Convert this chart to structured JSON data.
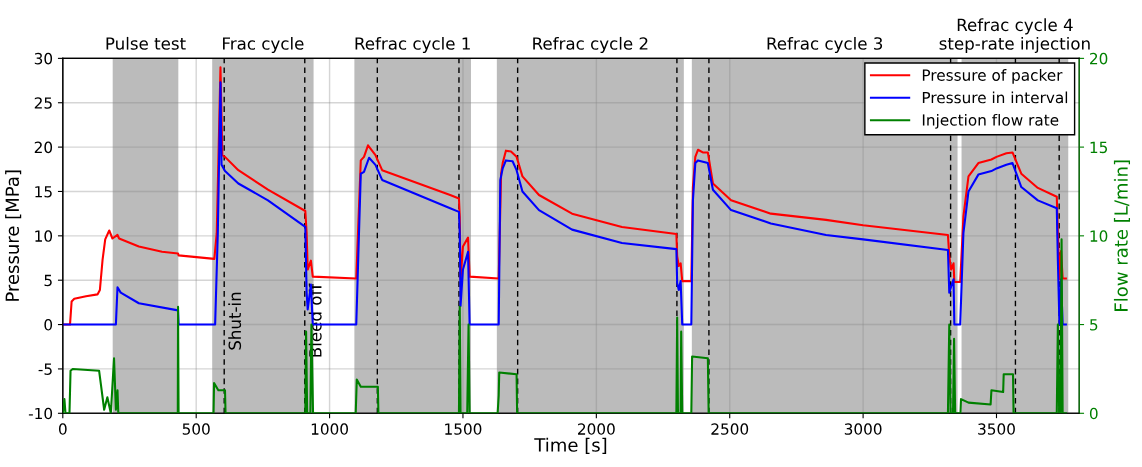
{
  "chart_data": {
    "type": "line",
    "xlabel": "Time [s]",
    "ylabel": "Pressure [MPa]",
    "y2label": "Flow rate [L/min]",
    "xlim": [
      0,
      3810
    ],
    "xticks": [
      0,
      500,
      1000,
      1500,
      2000,
      2500,
      3000,
      3500
    ],
    "ylim": [
      -10,
      30
    ],
    "yticks": [
      -10,
      -5,
      0,
      5,
      10,
      15,
      20,
      25,
      30
    ],
    "y2lim": [
      0,
      20
    ],
    "y2ticks": [
      0,
      5,
      10,
      15,
      20
    ],
    "grid": true,
    "legend": "top right",
    "line_style": "solid",
    "series": [
      {
        "name": "Pressure of packer",
        "color": "#ff0000",
        "x": [
          0,
          27,
          33,
          43,
          87,
          130,
          139,
          149,
          159,
          174,
          186,
          205,
          211,
          285,
          372,
          432,
          434,
          568,
          577,
          591,
          598,
          608,
          658,
          769,
          909,
          914,
          918,
          930,
          937,
          1100,
          1117,
          1129,
          1144,
          1172,
          1197,
          1452,
          1485,
          1488,
          1491,
          1500,
          1519,
          1525,
          1634,
          1643,
          1649,
          1661,
          1680,
          1701,
          1723,
          1785,
          1909,
          2096,
          2300,
          2303,
          2309,
          2316,
          2322,
          2356,
          2362,
          2371,
          2381,
          2399,
          2418,
          2437,
          2505,
          2654,
          2861,
          3000,
          3318,
          3323,
          3330,
          3339,
          3342,
          3364,
          3376,
          3395,
          3432,
          3481,
          3500,
          3537,
          3560,
          3593,
          3655,
          3726,
          3730,
          3736,
          3742,
          3748,
          3760
        ],
        "values": [
          0,
          0,
          2.6,
          2.9,
          3.2,
          3.4,
          3.9,
          7.3,
          9.6,
          10.6,
          9.7,
          10.1,
          9.7,
          8.8,
          8.2,
          8.0,
          7.8,
          7.4,
          10.3,
          29.0,
          19.1,
          18.9,
          17.4,
          15.2,
          12.8,
          10.3,
          6.2,
          7.2,
          5.4,
          5.2,
          18.5,
          18.9,
          20.2,
          19.1,
          17.4,
          14.6,
          14.2,
          12.2,
          5.1,
          8.8,
          9.8,
          5.4,
          5.2,
          17.0,
          18.2,
          19.6,
          19.5,
          18.9,
          16.7,
          14.6,
          12.5,
          11.0,
          10.2,
          7.7,
          6.6,
          6.9,
          4.9,
          4.9,
          15.5,
          18.9,
          19.7,
          19.4,
          19.4,
          15.9,
          14.0,
          12.5,
          11.8,
          11.2,
          10.1,
          7.7,
          6.2,
          6.9,
          4.8,
          4.8,
          12.2,
          16.7,
          18.2,
          18.6,
          18.9,
          19.3,
          19.4,
          17.0,
          15.4,
          14.4,
          10.3,
          5.1,
          8.3,
          5.2,
          5.2
        ]
      },
      {
        "name": "Pressure in interval",
        "color": "#0000ff",
        "x": [
          0,
          199,
          205,
          217,
          285,
          432,
          434,
          571,
          581,
          591,
          595,
          608,
          658,
          769,
          909,
          914,
          918,
          930,
          937,
          1100,
          1117,
          1129,
          1148,
          1172,
          1197,
          1452,
          1485,
          1488,
          1491,
          1500,
          1519,
          1525,
          1634,
          1640,
          1649,
          1661,
          1686,
          1701,
          1723,
          1785,
          1909,
          2096,
          2300,
          2303,
          2309,
          2316,
          2322,
          2356,
          2362,
          2371,
          2381,
          2418,
          2437,
          2505,
          2654,
          2861,
          3000,
          3318,
          3323,
          3330,
          3339,
          3342,
          3364,
          3376,
          3395,
          3432,
          3481,
          3500,
          3537,
          3560,
          3593,
          3655,
          3726,
          3730,
          3736,
          3742,
          3748,
          3760
        ],
        "values": [
          0,
          0,
          4.2,
          3.6,
          2.4,
          1.6,
          0,
          0,
          10.3,
          27.3,
          18.0,
          17.3,
          15.9,
          14.0,
          11.0,
          3.6,
          1.7,
          4.5,
          0,
          0,
          17.0,
          17.2,
          18.8,
          18.0,
          16.3,
          13.1,
          12.7,
          10.3,
          2.1,
          6.2,
          8.2,
          0,
          0,
          16.3,
          17.6,
          18.5,
          18.4,
          17.4,
          15.0,
          12.9,
          10.7,
          9.2,
          8.5,
          4.7,
          3.9,
          4.9,
          0,
          0,
          14.0,
          18.2,
          18.5,
          18.2,
          15.2,
          12.9,
          11.4,
          10.1,
          9.6,
          8.4,
          3.6,
          4.3,
          5.1,
          0,
          0,
          10.3,
          15.0,
          16.9,
          17.3,
          17.6,
          18.0,
          18.2,
          15.5,
          14.0,
          13.1,
          7.3,
          0,
          5.1,
          0,
          0
        ]
      },
      {
        "name": "Injection flow rate",
        "color": "#008000",
        "axis": "y2",
        "x": [
          0,
          6,
          10,
          25,
          29,
          37,
          136,
          143,
          155,
          167,
          180,
          192,
          199,
          205,
          208,
          431,
          432,
          434,
          565,
          567,
          583,
          608,
          610,
          909,
          912,
          916,
          928,
          932,
          938,
          1098,
          1102,
          1117,
          1181,
          1183,
          1485,
          1488,
          1491,
          1516,
          1521,
          1525,
          1630,
          1634,
          1636,
          1701,
          1703,
          2300,
          2303,
          2306,
          2316,
          2318,
          2322,
          2356,
          2359,
          2418,
          2421,
          3318,
          3323,
          3328,
          3337,
          3341,
          3345,
          3365,
          3367,
          3395,
          3478,
          3481,
          3525,
          3527,
          3562,
          3564,
          3726,
          3730,
          3735,
          3740,
          3744,
          3748,
          3760
        ],
        "values": [
          0,
          0.8,
          0,
          0,
          2.4,
          2.5,
          2.4,
          1.6,
          0.2,
          0.9,
          0,
          3.1,
          0.2,
          1.3,
          0,
          0,
          6.0,
          0,
          0,
          1.7,
          1.3,
          1.3,
          0,
          0,
          4.6,
          0,
          0,
          5.0,
          0,
          0,
          1.9,
          1.5,
          1.5,
          0,
          0,
          6.0,
          0,
          0,
          5.0,
          0,
          0,
          1.0,
          2.3,
          2.2,
          0,
          0,
          5.4,
          0,
          0,
          4.6,
          0,
          0,
          3.2,
          3.1,
          0,
          0,
          5.0,
          0,
          0,
          4.2,
          0,
          0,
          0.8,
          0.6,
          0.5,
          1.3,
          1.2,
          2.2,
          2.2,
          0,
          0,
          5.0,
          0,
          0,
          9.8,
          0,
          0
        ]
      }
    ],
    "bands": [
      {
        "axis": "x",
        "from": 187,
        "to": 433,
        "label": "Pulse test",
        "color": "#bbbbbb"
      },
      {
        "axis": "x",
        "from": 560,
        "to": 940,
        "label": "Frac cycle",
        "color": "#bbbbbb"
      },
      {
        "axis": "x",
        "from": 1093,
        "to": 1530,
        "label": "Refrac cycle 1",
        "color": "#bbbbbb"
      },
      {
        "axis": "x",
        "from": 1627,
        "to": 2328,
        "label": "Refrac cycle 2",
        "color": "#bbbbbb"
      },
      {
        "axis": "x",
        "from": 2358,
        "to": 3354,
        "label": "Refrac cycle 3",
        "color": "#bbbbbb"
      },
      {
        "axis": "x",
        "from": 3369,
        "to": 3769,
        "label": "Refrac cycle 4\nstep-rate injection",
        "color": "#bbbbbb"
      }
    ],
    "ref_lines": [
      {
        "axis": "x",
        "value": 605,
        "label": "Shut-in",
        "color": "#000000",
        "line_style": "dashed"
      },
      {
        "axis": "x",
        "value": 907,
        "label": "Bleed off",
        "color": "#000000",
        "line_style": "dashed"
      },
      {
        "axis": "x",
        "value": 1179,
        "color": "#000000",
        "line_style": "dashed"
      },
      {
        "axis": "x",
        "value": 1485,
        "color": "#000000",
        "line_style": "dashed"
      },
      {
        "axis": "x",
        "value": 1705,
        "color": "#000000",
        "line_style": "dashed"
      },
      {
        "axis": "x",
        "value": 2302,
        "color": "#000000",
        "line_style": "dashed"
      },
      {
        "axis": "x",
        "value": 2422,
        "color": "#000000",
        "line_style": "dashed"
      },
      {
        "axis": "x",
        "value": 3328,
        "color": "#000000",
        "line_style": "dashed"
      },
      {
        "axis": "x",
        "value": 3571,
        "color": "#000000",
        "line_style": "dashed"
      },
      {
        "axis": "x",
        "value": 3735,
        "color": "#000000",
        "line_style": "dashed"
      }
    ]
  }
}
